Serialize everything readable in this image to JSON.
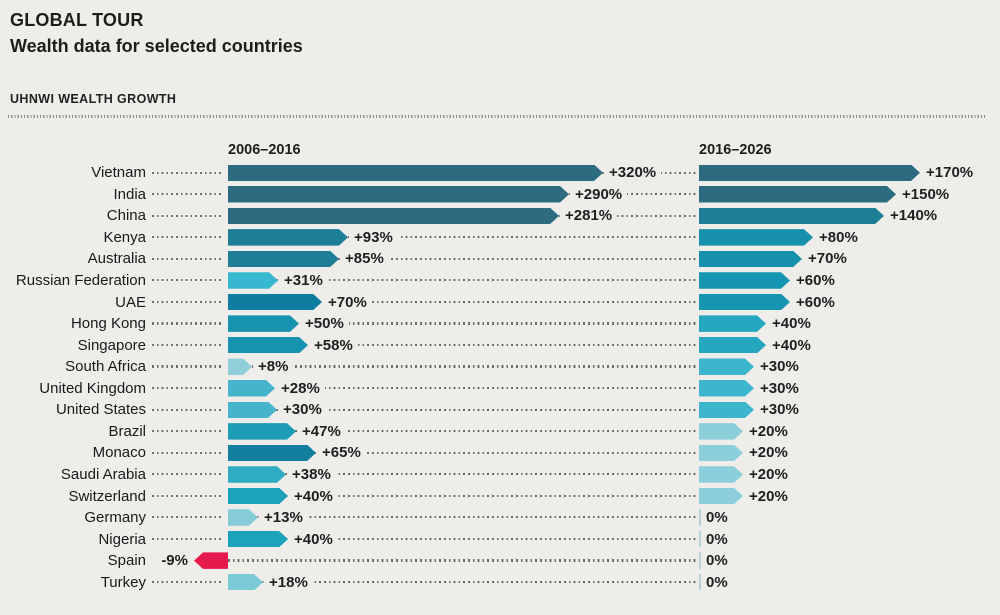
{
  "page": {
    "title": "GLOBAL TOUR",
    "subtitle": "Wealth data for selected countries",
    "section_label": "UHNWI WEALTH GROWTH"
  },
  "chart_data": {
    "type": "bar",
    "orientation": "horizontal",
    "title": "UHNWI WEALTH GROWTH",
    "columns": [
      {
        "label": "2006–2016"
      },
      {
        "label": "2016–2026"
      }
    ],
    "grid": false,
    "legend_position": "none",
    "units": "percent growth",
    "palette": {
      "background": "#efedea",
      "negative_red": "#e61a4d",
      "zero_tick": "#b7d3da",
      "leader_dots": "#6e6e6e"
    },
    "rows": [
      {
        "country": "Vietnam",
        "v1": 320,
        "label1": "+320%",
        "c1": "#2d6b80",
        "v2": 170,
        "label2": "+170%",
        "c2": "#2d6b80"
      },
      {
        "country": "India",
        "v1": 290,
        "label1": "+290%",
        "c1": "#2d6b80",
        "v2": 150,
        "label2": "+150%",
        "c2": "#2d6b80"
      },
      {
        "country": "China",
        "v1": 281,
        "label1": "+281%",
        "c1": "#2d6b80",
        "v2": 140,
        "label2": "+140%",
        "c2": "#1e7e96"
      },
      {
        "country": "Kenya",
        "v1": 93,
        "label1": "+93%",
        "c1": "#1e7e96",
        "v2": 80,
        "label2": "+80%",
        "c2": "#1790ab"
      },
      {
        "country": "Australia",
        "v1": 85,
        "label1": "+85%",
        "c1": "#1e7e96",
        "v2": 70,
        "label2": "+70%",
        "c2": "#1790ab"
      },
      {
        "country": "Russian Federation",
        "v1": 31,
        "label1": "+31%",
        "c1": "#38b7d0",
        "v2": 60,
        "label2": "+60%",
        "c2": "#1695b1"
      },
      {
        "country": "UAE",
        "v1": 70,
        "label1": "+70%",
        "c1": "#0e7da0",
        "v2": 60,
        "label2": "+60%",
        "c2": "#1695b1"
      },
      {
        "country": "Hong Kong",
        "v1": 50,
        "label1": "+50%",
        "c1": "#1593af",
        "v2": 40,
        "label2": "+40%",
        "c2": "#25a7bf"
      },
      {
        "country": "Singapore",
        "v1": 58,
        "label1": "+58%",
        "c1": "#1593af",
        "v2": 40,
        "label2": "+40%",
        "c2": "#25a7bf"
      },
      {
        "country": "South Africa",
        "v1": 8,
        "label1": "+8%",
        "c1": "#90cfda",
        "v2": 30,
        "label2": "+30%",
        "c2": "#3db6cd"
      },
      {
        "country": "United Kingdom",
        "v1": 28,
        "label1": "+28%",
        "c1": "#46b5cb",
        "v2": 30,
        "label2": "+30%",
        "c2": "#3db6cd"
      },
      {
        "country": "United States",
        "v1": 30,
        "label1": "+30%",
        "c1": "#46b5cb",
        "v2": 30,
        "label2": "+30%",
        "c2": "#3db6cd"
      },
      {
        "country": "Brazil",
        "v1": 47,
        "label1": "+47%",
        "c1": "#1d9cb6",
        "v2": 20,
        "label2": "+20%",
        "c2": "#8ccfda"
      },
      {
        "country": "Monaco",
        "v1": 65,
        "label1": "+65%",
        "c1": "#11809f",
        "v2": 20,
        "label2": "+20%",
        "c2": "#8ccfda"
      },
      {
        "country": "Saudi Arabia",
        "v1": 38,
        "label1": "+38%",
        "c1": "#2fabc4",
        "v2": 20,
        "label2": "+20%",
        "c2": "#8ccfda"
      },
      {
        "country": "Switzerland",
        "v1": 40,
        "label1": "+40%",
        "c1": "#1da2bb",
        "v2": 20,
        "label2": "+20%",
        "c2": "#8ccfda"
      },
      {
        "country": "Germany",
        "v1": 13,
        "label1": "+13%",
        "c1": "#85ccd8",
        "v2": 0,
        "label2": "0%",
        "c2": "#b7d3da"
      },
      {
        "country": "Nigeria",
        "v1": 40,
        "label1": "+40%",
        "c1": "#1da2bb",
        "v2": 0,
        "label2": "0%",
        "c2": "#b7d3da"
      },
      {
        "country": "Spain",
        "v1": -9,
        "label1": "-9%",
        "c1": "#e61a4d",
        "v2": 0,
        "label2": "0%",
        "c2": "#b7d3da"
      },
      {
        "country": "Turkey",
        "v1": 18,
        "label1": "+18%",
        "c1": "#7cc9d6",
        "v2": 0,
        "label2": "0%",
        "c2": "#b7d3da"
      }
    ]
  }
}
